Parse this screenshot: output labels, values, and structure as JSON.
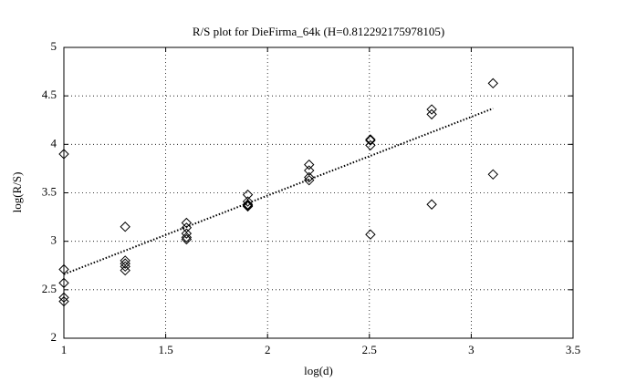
{
  "chart_data": {
    "type": "scatter",
    "title": "R/S plot for DieFirma_64k (H=0.812292175978105)",
    "x_label": "log(d)",
    "y_label": "log(R/S)",
    "xlim": [
      1,
      3.5
    ],
    "ylim": [
      2,
      5
    ],
    "xticks": [
      1,
      1.5,
      2,
      2.5,
      3,
      3.5
    ],
    "yticks": [
      2,
      2.5,
      3,
      3.5,
      4,
      4.5,
      5
    ],
    "grid": true,
    "series": [
      {
        "type": "scatter",
        "color": "#000000",
        "x": [
          1,
          1,
          1,
          1,
          1,
          1.301,
          1.301,
          1.301,
          1.301,
          1.301,
          1.602,
          1.602,
          1.602,
          1.602,
          1.602,
          1.903,
          1.903,
          1.903,
          1.903,
          1.903,
          2.204,
          2.204,
          2.204,
          2.204,
          2.505,
          2.505,
          2.505,
          2.505,
          2.806,
          2.806,
          2.806,
          3.107,
          3.107
        ],
        "values": [
          3.9,
          2.71,
          2.57,
          2.42,
          2.38,
          3.15,
          2.8,
          2.77,
          2.74,
          2.7,
          3.19,
          3.14,
          3.08,
          3.04,
          3.02,
          3.48,
          3.41,
          3.38,
          3.37,
          3.36,
          3.79,
          3.73,
          3.66,
          3.63,
          4.05,
          4.04,
          3.99,
          3.07,
          4.36,
          4.31,
          3.38,
          4.63,
          3.69
        ]
      },
      {
        "type": "line",
        "color": "#000000",
        "x": [
          1,
          3.107
        ],
        "values": [
          2.66,
          4.37
        ]
      }
    ]
  }
}
